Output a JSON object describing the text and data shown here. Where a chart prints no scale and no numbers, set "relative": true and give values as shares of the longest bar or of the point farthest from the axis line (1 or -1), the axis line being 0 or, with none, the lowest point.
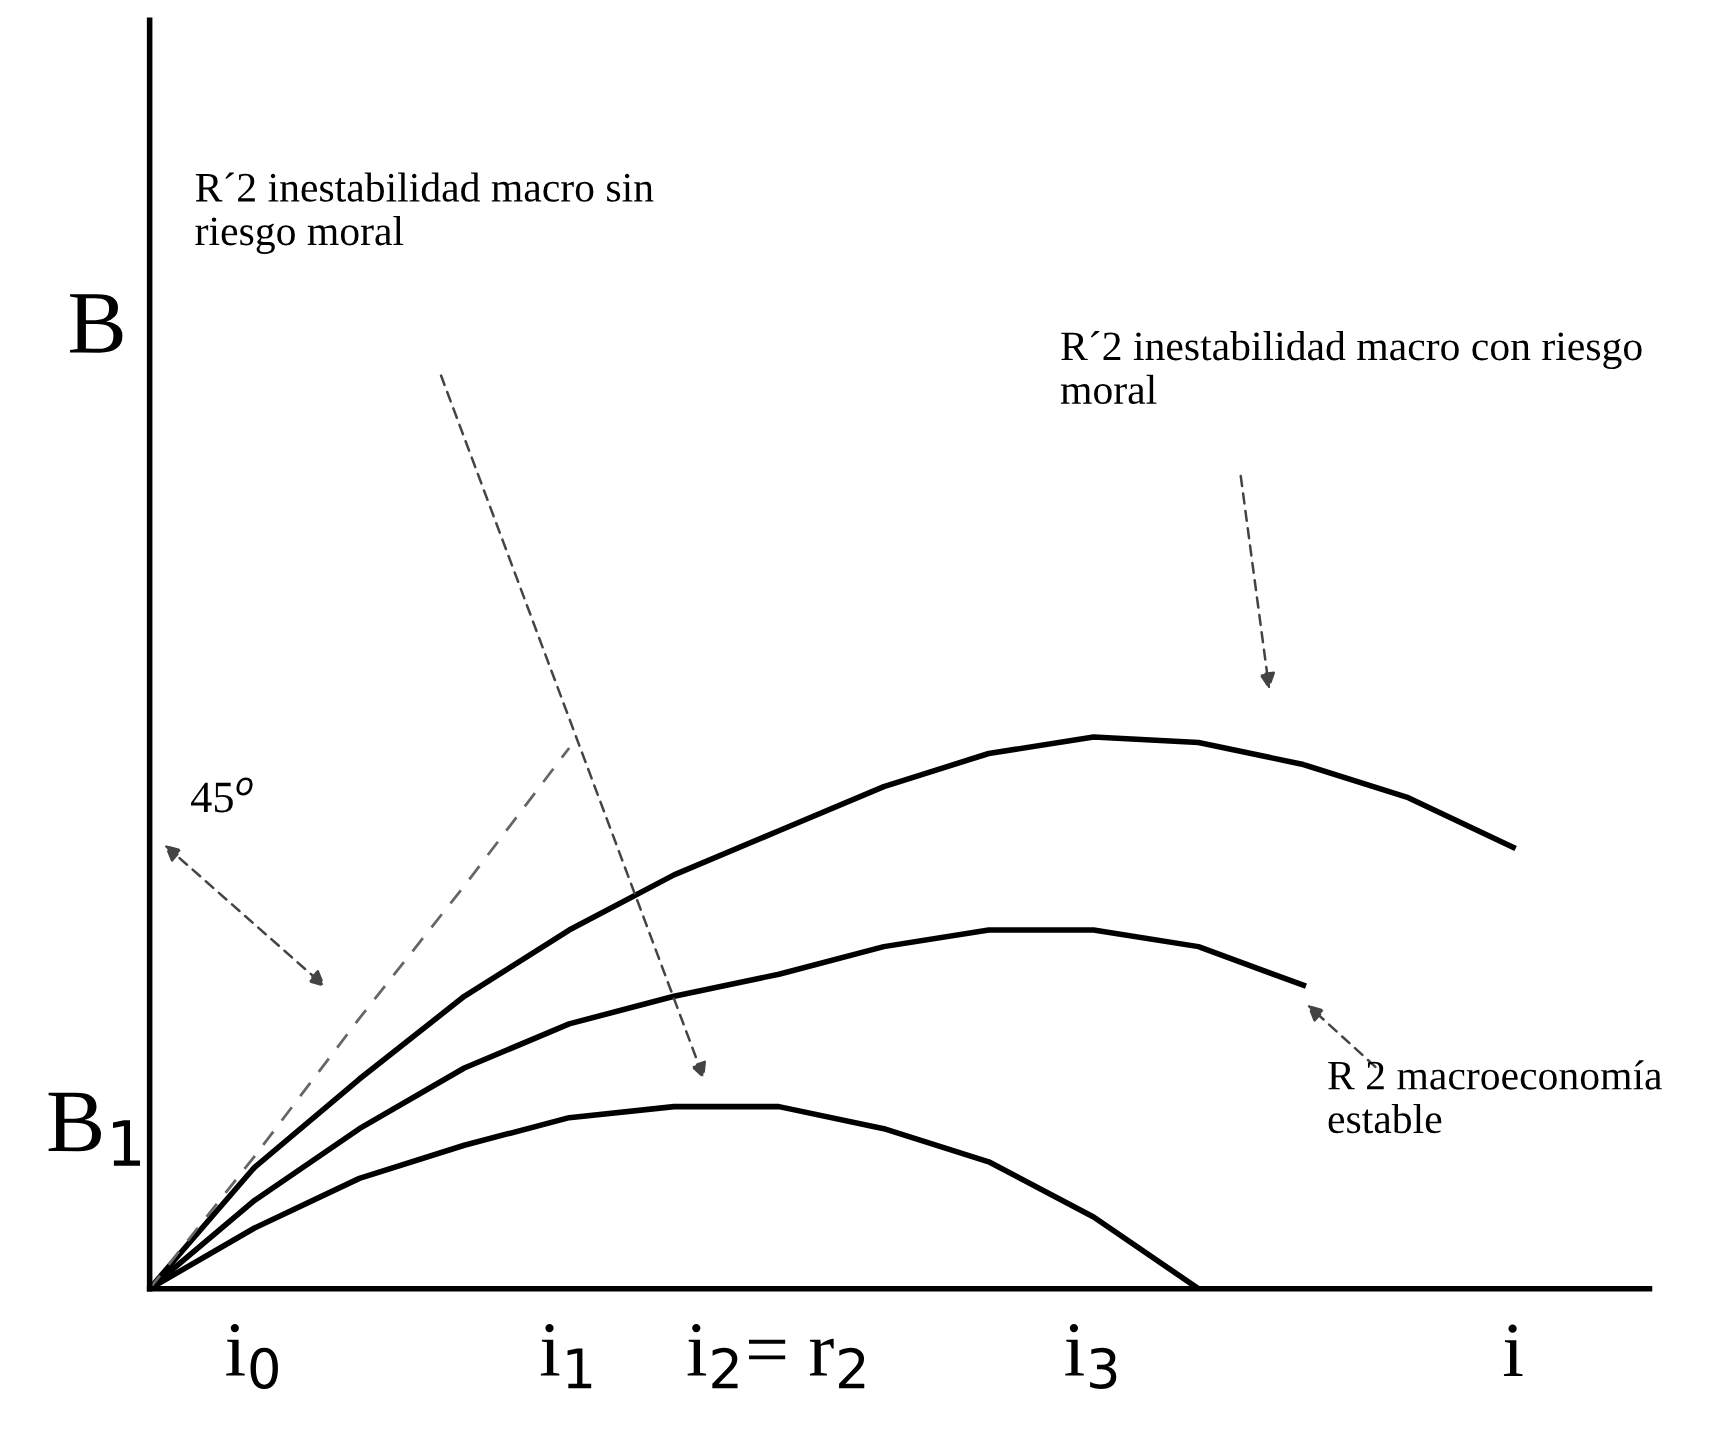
{
  "chart_data": {
    "type": "line",
    "relative": true,
    "categories": [
      null,
      "i$_{0}$",
      null,
      null,
      "i$_{1}$",
      null,
      "i$_{2}$= r$_{2}$",
      null,
      null,
      "i$_{3}$",
      null,
      null,
      null,
      "i",
      null
    ],
    "marker": "none",
    "series": [
      {
        "color": "#000000",
        "line_style": "solid",
        "values": [
          0,
          0.22,
          0.38,
          0.53,
          0.65,
          0.75,
          0.83,
          0.91,
          0.97,
          1.0,
          0.99,
          0.95,
          0.89,
          0.8,
          null
        ]
      },
      {
        "color": "#000000",
        "line_style": "solid",
        "values": [
          0,
          0.16,
          0.29,
          0.4,
          0.48,
          0.53,
          0.57,
          0.62,
          0.65,
          0.65,
          0.62,
          0.55,
          null,
          null,
          null
        ]
      },
      {
        "color": "#000000",
        "line_style": "solid",
        "values": [
          0,
          0.11,
          0.2,
          0.26,
          0.31,
          0.33,
          0.33,
          0.29,
          0.23,
          0.13,
          0,
          null,
          null,
          null,
          null
        ]
      },
      {
        "color": "#666666",
        "line_style": "dashed",
        "values": [
          0,
          0.24,
          0.49,
          0.73,
          0.98,
          null,
          null,
          null,
          null,
          null,
          null,
          null,
          null,
          null,
          null
        ]
      }
    ],
    "annotations": [
      "R´2 inestabilidad macro sin riesgo moral",
      "R´2 inestabilidad macro con riesgo moral",
      "R 2 macroeconomía estable",
      "45$^{o}$",
      "B",
      "B$_{1}$"
    ]
  }
}
